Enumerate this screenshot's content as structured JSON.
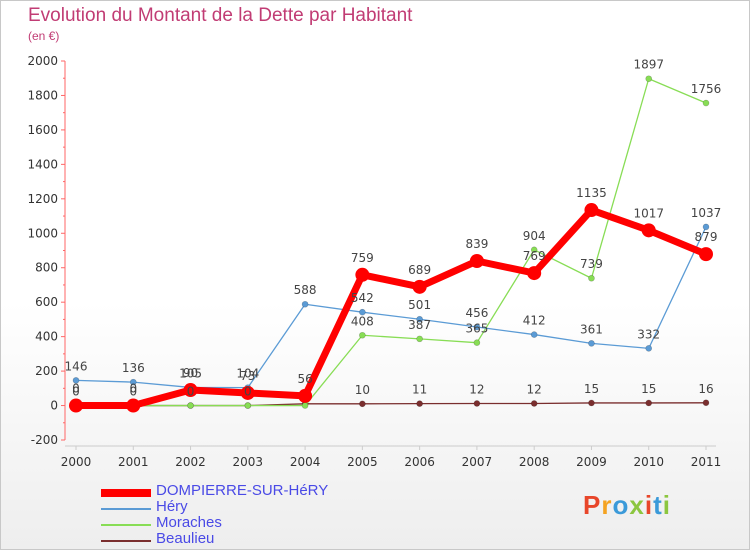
{
  "header": {
    "title": "Evolution du Montant de la Dette par Habitant",
    "subtitle": "(en €)"
  },
  "logo": {
    "text": "Proxiti",
    "colors": [
      "#e8462a",
      "#f4a321",
      "#3b9ad9",
      "#8cc63f",
      "#e8462a",
      "#3b9ad9",
      "#8cc63f"
    ]
  },
  "chart_data": {
    "type": "line",
    "title": "Evolution du Montant de la Dette par Habitant",
    "ylabel": "(en €)",
    "xlabel": "",
    "x": [
      "2000",
      "2001",
      "2002",
      "2003",
      "2004",
      "2005",
      "2006",
      "2007",
      "2008",
      "2009",
      "2010",
      "2011"
    ],
    "ylim": [
      -200,
      2000
    ],
    "yticks": [
      -200,
      0,
      200,
      400,
      600,
      800,
      1000,
      1200,
      1400,
      1600,
      1800,
      2000
    ],
    "grid": false,
    "legend_position": "bottom-left",
    "series": [
      {
        "name": "DOMPIERRE-SUR-HéRY",
        "color": "#ff0000",
        "values": [
          0,
          0,
          90,
          73,
          56,
          759,
          689,
          839,
          769,
          1135,
          1017,
          879
        ],
        "labels": [
          "0",
          "0",
          "90",
          "73",
          "56",
          "759",
          "689",
          "839",
          "769",
          "1135",
          "1017",
          "879"
        ]
      },
      {
        "name": "Héry",
        "color": "#5b9bd5",
        "values": [
          146,
          136,
          105,
          104,
          588,
          542,
          501,
          456,
          412,
          361,
          332,
          1037
        ],
        "labels": [
          "146",
          "136",
          "105",
          "104",
          "588",
          "542",
          "501",
          "456",
          "412",
          "361",
          "332",
          "1037"
        ]
      },
      {
        "name": "Moraches",
        "color": "#88dd55",
        "values": [
          0,
          0,
          0,
          0,
          0,
          408,
          387,
          365,
          904,
          739,
          1897,
          1756
        ],
        "labels": [
          "",
          "",
          "",
          "",
          "",
          "408",
          "387",
          "365",
          "904",
          "739",
          "1897",
          "1756"
        ]
      },
      {
        "name": "Beaulieu",
        "color": "#7a2e2e",
        "values": [
          0,
          0,
          0,
          0,
          10,
          10,
          11,
          12,
          12,
          15,
          15,
          16
        ],
        "labels": [
          "0",
          "0",
          "0",
          "0",
          "",
          "10",
          "11",
          "12",
          "12",
          "15",
          "15",
          "16"
        ]
      }
    ]
  },
  "legend": [
    {
      "label": "DOMPIERRE-SUR-HéRY",
      "color": "#ff0000",
      "text_color": "#4a4ae6"
    },
    {
      "label": "Héry",
      "color": "#5b9bd5",
      "text_color": "#4a4ae6"
    },
    {
      "label": "Moraches",
      "color": "#88dd55",
      "text_color": "#4a4ae6"
    },
    {
      "label": "Beaulieu",
      "color": "#7a2e2e",
      "text_color": "#4a4ae6"
    }
  ]
}
